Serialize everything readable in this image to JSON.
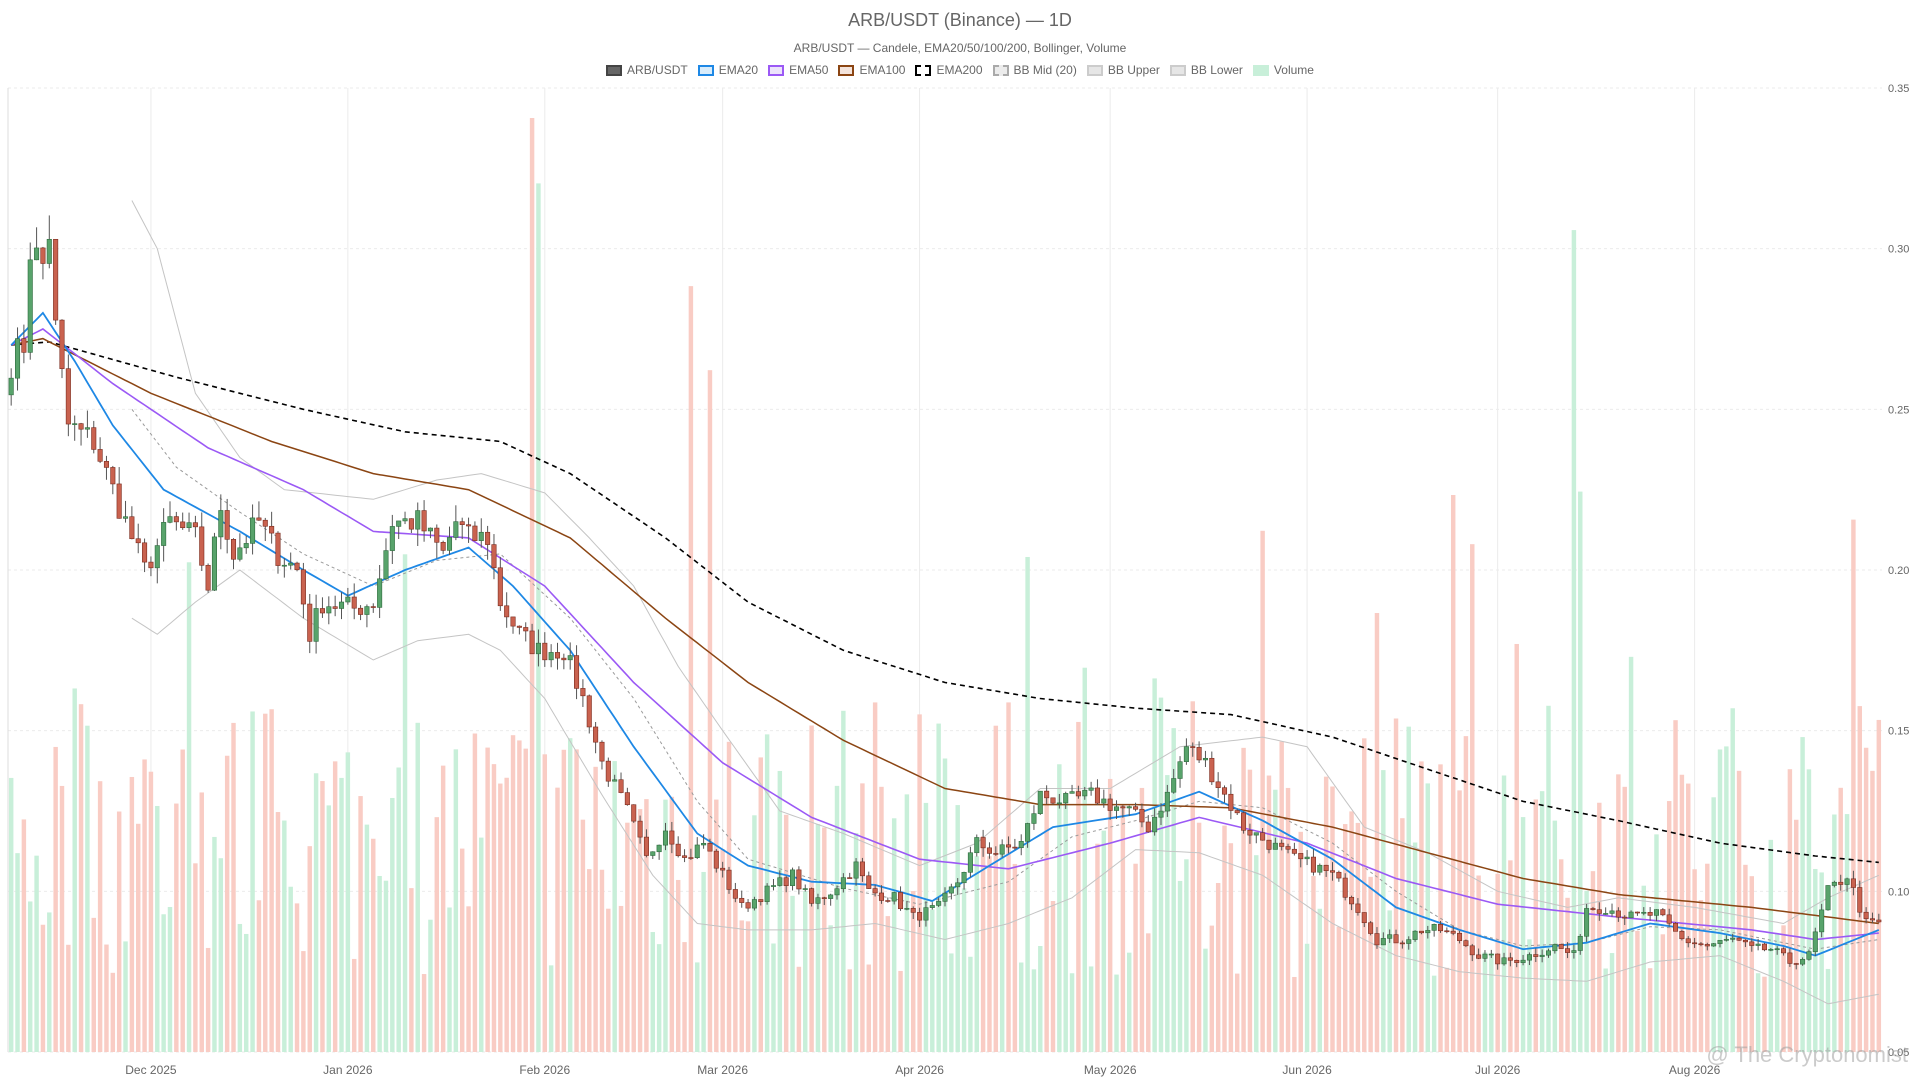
{
  "title": "ARB/USDT (Binance) — 1D",
  "subtitle": "ARB/USDT — Candele, EMA20/50/100/200, Bollinger, Volume",
  "watermark": "@ The Cryptonomist",
  "legend": [
    {
      "label": "ARB/USDT",
      "fill": "#666666",
      "stroke": "#444444",
      "dash": false
    },
    {
      "label": "EMA20",
      "fill": "#d8ecfb",
      "stroke": "#1e88e5",
      "dash": false
    },
    {
      "label": "EMA50",
      "fill": "#ece3fb",
      "stroke": "#9b59f5",
      "dash": false
    },
    {
      "label": "EMA100",
      "fill": "#f4e4dc",
      "stroke": "#8b4513",
      "dash": false
    },
    {
      "label": "EMA200",
      "fill": "#ffffff",
      "stroke": "#000000",
      "dash": true
    },
    {
      "label": "BB Mid (20)",
      "fill": "#ececec",
      "stroke": "#aaaaaa",
      "dash": true
    },
    {
      "label": "BB Upper",
      "fill": "#e6e6e6",
      "stroke": "#cccccc",
      "dash": false
    },
    {
      "label": "BB Lower",
      "fill": "#e6e6e6",
      "stroke": "#cccccc",
      "dash": false
    },
    {
      "label": "Volume",
      "fill": "#c8efd9",
      "stroke": "#c8efd9",
      "dash": false
    }
  ],
  "chart_data": {
    "type": "candlestick",
    "ylim": [
      0.05,
      0.35
    ],
    "y_ticks": [
      0.05,
      0.1,
      0.15,
      0.2,
      0.25,
      0.3,
      0.35
    ],
    "y_tick_labels": [
      "0.05",
      "0.10",
      "0.15",
      "0.20",
      "0.25",
      "0.30",
      "0.35"
    ],
    "x_start": "2025-11-09",
    "x_end": "2026-08-30",
    "x_ticks": [
      {
        "date": "2025-12-01",
        "label": "Dec 2025"
      },
      {
        "date": "2026-01-01",
        "label": "Jan 2026"
      },
      {
        "date": "2026-02-01",
        "label": "Feb 2026"
      },
      {
        "date": "2026-03-01",
        "label": "Mar 2026"
      },
      {
        "date": "2026-04-01",
        "label": "Apr 2026"
      },
      {
        "date": "2026-05-01",
        "label": "May 2026"
      },
      {
        "date": "2026-06-01",
        "label": "Jun 2026"
      },
      {
        "date": "2026-07-01",
        "label": "Jul 2026"
      },
      {
        "date": "2026-08-01",
        "label": "Aug 2026"
      }
    ],
    "close_anchors": [
      [
        "2025-11-09",
        0.265
      ],
      [
        "2025-11-11",
        0.27
      ],
      [
        "2025-11-12",
        0.3
      ],
      [
        "2025-11-14",
        0.295
      ],
      [
        "2025-11-15",
        0.305
      ],
      [
        "2025-11-16",
        0.275
      ],
      [
        "2025-11-17",
        0.26
      ],
      [
        "2025-11-18",
        0.245
      ],
      [
        "2025-11-22",
        0.24
      ],
      [
        "2025-11-25",
        0.225
      ],
      [
        "2025-11-28",
        0.21
      ],
      [
        "2025-11-30",
        0.2
      ],
      [
        "2025-12-04",
        0.215
      ],
      [
        "2025-12-08",
        0.21
      ],
      [
        "2025-12-10",
        0.195
      ],
      [
        "2025-12-12",
        0.22
      ],
      [
        "2025-12-14",
        0.205
      ],
      [
        "2025-12-18",
        0.215
      ],
      [
        "2025-12-21",
        0.205
      ],
      [
        "2025-12-24",
        0.2
      ],
      [
        "2025-12-26",
        0.18
      ],
      [
        "2025-12-28",
        0.19
      ],
      [
        "2026-01-02",
        0.188
      ],
      [
        "2026-01-05",
        0.19
      ],
      [
        "2026-01-08",
        0.215
      ],
      [
        "2026-01-12",
        0.215
      ],
      [
        "2026-01-16",
        0.205
      ],
      [
        "2026-01-18",
        0.215
      ],
      [
        "2026-01-20",
        0.21
      ],
      [
        "2026-01-23",
        0.21
      ],
      [
        "2026-01-25",
        0.19
      ],
      [
        "2026-01-28",
        0.18
      ],
      [
        "2026-01-31",
        0.175
      ],
      [
        "2026-02-04",
        0.175
      ],
      [
        "2026-02-07",
        0.16
      ],
      [
        "2026-02-10",
        0.14
      ],
      [
        "2026-02-14",
        0.125
      ],
      [
        "2026-02-17",
        0.11
      ],
      [
        "2026-02-20",
        0.12
      ],
      [
        "2026-02-23",
        0.11
      ],
      [
        "2026-02-26",
        0.115
      ],
      [
        "2026-03-01",
        0.105
      ],
      [
        "2026-03-04",
        0.095
      ],
      [
        "2026-03-08",
        0.1
      ],
      [
        "2026-03-12",
        0.105
      ],
      [
        "2026-03-15",
        0.096
      ],
      [
        "2026-03-18",
        0.1
      ],
      [
        "2026-03-22",
        0.108
      ],
      [
        "2026-03-24",
        0.1
      ],
      [
        "2026-03-28",
        0.098
      ],
      [
        "2026-03-31",
        0.092
      ],
      [
        "2026-04-04",
        0.095
      ],
      [
        "2026-04-07",
        0.103
      ],
      [
        "2026-04-10",
        0.115
      ],
      [
        "2026-04-13",
        0.112
      ],
      [
        "2026-04-17",
        0.115
      ],
      [
        "2026-04-20",
        0.13
      ],
      [
        "2026-04-24",
        0.128
      ],
      [
        "2026-04-28",
        0.13
      ],
      [
        "2026-05-01",
        0.127
      ],
      [
        "2026-05-04",
        0.125
      ],
      [
        "2026-05-07",
        0.12
      ],
      [
        "2026-05-10",
        0.13
      ],
      [
        "2026-05-13",
        0.145
      ],
      [
        "2026-05-16",
        0.14
      ],
      [
        "2026-05-19",
        0.13
      ],
      [
        "2026-05-22",
        0.12
      ],
      [
        "2026-05-26",
        0.115
      ],
      [
        "2026-05-30",
        0.11
      ],
      [
        "2026-06-02",
        0.108
      ],
      [
        "2026-06-05",
        0.105
      ],
      [
        "2026-06-09",
        0.095
      ],
      [
        "2026-06-12",
        0.085
      ],
      [
        "2026-06-16",
        0.085
      ],
      [
        "2026-06-19",
        0.088
      ],
      [
        "2026-06-22",
        0.088
      ],
      [
        "2026-06-25",
        0.085
      ],
      [
        "2026-06-28",
        0.08
      ],
      [
        "2026-07-02",
        0.078
      ],
      [
        "2026-07-06",
        0.08
      ],
      [
        "2026-07-10",
        0.083
      ],
      [
        "2026-07-13",
        0.08
      ],
      [
        "2026-07-15",
        0.095
      ],
      [
        "2026-07-18",
        0.095
      ],
      [
        "2026-07-22",
        0.092
      ],
      [
        "2026-07-26",
        0.093
      ],
      [
        "2026-07-30",
        0.085
      ],
      [
        "2026-08-03",
        0.083
      ],
      [
        "2026-08-07",
        0.085
      ],
      [
        "2026-08-10",
        0.082
      ],
      [
        "2026-08-13",
        0.082
      ],
      [
        "2026-08-16",
        0.078
      ],
      [
        "2026-08-19",
        0.08
      ],
      [
        "2026-08-22",
        0.1
      ],
      [
        "2026-08-25",
        0.105
      ],
      [
        "2026-08-28",
        0.09
      ],
      [
        "2026-08-30",
        0.09
      ]
    ],
    "ema20_anchors": [
      [
        "2025-11-09",
        0.27
      ],
      [
        "2025-11-14",
        0.28
      ],
      [
        "2025-11-19",
        0.265
      ],
      [
        "2025-11-25",
        0.245
      ],
      [
        "2025-12-03",
        0.225
      ],
      [
        "2025-12-15",
        0.212
      ],
      [
        "2025-12-25",
        0.2
      ],
      [
        "2026-01-01",
        0.192
      ],
      [
        "2026-01-10",
        0.2
      ],
      [
        "2026-01-20",
        0.207
      ],
      [
        "2026-01-27",
        0.195
      ],
      [
        "2026-02-05",
        0.175
      ],
      [
        "2026-02-15",
        0.145
      ],
      [
        "2026-02-25",
        0.118
      ],
      [
        "2026-03-05",
        0.108
      ],
      [
        "2026-03-15",
        0.103
      ],
      [
        "2026-03-25",
        0.102
      ],
      [
        "2026-04-03",
        0.097
      ],
      [
        "2026-04-12",
        0.108
      ],
      [
        "2026-04-22",
        0.12
      ],
      [
        "2026-05-05",
        0.124
      ],
      [
        "2026-05-15",
        0.131
      ],
      [
        "2026-05-25",
        0.122
      ],
      [
        "2026-06-05",
        0.11
      ],
      [
        "2026-06-15",
        0.095
      ],
      [
        "2026-06-25",
        0.088
      ],
      [
        "2026-07-05",
        0.082
      ],
      [
        "2026-07-15",
        0.084
      ],
      [
        "2026-07-25",
        0.09
      ],
      [
        "2026-08-05",
        0.087
      ],
      [
        "2026-08-15",
        0.083
      ],
      [
        "2026-08-20",
        0.08
      ],
      [
        "2026-08-30",
        0.088
      ]
    ],
    "ema50_anchors": [
      [
        "2025-11-09",
        0.27
      ],
      [
        "2025-11-14",
        0.275
      ],
      [
        "2025-11-25",
        0.258
      ],
      [
        "2025-12-10",
        0.238
      ],
      [
        "2025-12-25",
        0.225
      ],
      [
        "2026-01-05",
        0.212
      ],
      [
        "2026-01-20",
        0.21
      ],
      [
        "2026-02-01",
        0.195
      ],
      [
        "2026-02-15",
        0.165
      ],
      [
        "2026-03-01",
        0.14
      ],
      [
        "2026-03-15",
        0.123
      ],
      [
        "2026-04-01",
        0.11
      ],
      [
        "2026-04-15",
        0.107
      ],
      [
        "2026-05-01",
        0.115
      ],
      [
        "2026-05-15",
        0.123
      ],
      [
        "2026-06-01",
        0.115
      ],
      [
        "2026-06-15",
        0.104
      ],
      [
        "2026-07-01",
        0.096
      ],
      [
        "2026-07-20",
        0.092
      ],
      [
        "2026-08-10",
        0.088
      ],
      [
        "2026-08-20",
        0.085
      ],
      [
        "2026-08-30",
        0.087
      ]
    ],
    "ema100_anchors": [
      [
        "2025-11-09",
        0.27
      ],
      [
        "2025-11-14",
        0.272
      ],
      [
        "2025-12-01",
        0.255
      ],
      [
        "2025-12-20",
        0.24
      ],
      [
        "2026-01-05",
        0.23
      ],
      [
        "2026-01-20",
        0.225
      ],
      [
        "2026-02-05",
        0.21
      ],
      [
        "2026-02-20",
        0.185
      ],
      [
        "2026-03-05",
        0.165
      ],
      [
        "2026-03-20",
        0.147
      ],
      [
        "2026-04-05",
        0.132
      ],
      [
        "2026-04-20",
        0.127
      ],
      [
        "2026-05-05",
        0.127
      ],
      [
        "2026-05-20",
        0.126
      ],
      [
        "2026-06-05",
        0.12
      ],
      [
        "2026-06-20",
        0.112
      ],
      [
        "2026-07-05",
        0.104
      ],
      [
        "2026-07-20",
        0.099
      ],
      [
        "2026-08-10",
        0.095
      ],
      [
        "2026-08-30",
        0.09
      ]
    ],
    "ema200_anchors": [
      [
        "2025-11-09",
        0.27
      ],
      [
        "2025-11-15",
        0.271
      ],
      [
        "2025-12-05",
        0.26
      ],
      [
        "2025-12-25",
        0.25
      ],
      [
        "2026-01-10",
        0.243
      ],
      [
        "2026-01-25",
        0.24
      ],
      [
        "2026-02-05",
        0.23
      ],
      [
        "2026-02-20",
        0.21
      ],
      [
        "2026-03-05",
        0.19
      ],
      [
        "2026-03-20",
        0.175
      ],
      [
        "2026-04-05",
        0.165
      ],
      [
        "2026-04-20",
        0.16
      ],
      [
        "2026-05-05",
        0.157
      ],
      [
        "2026-05-20",
        0.155
      ],
      [
        "2026-06-05",
        0.148
      ],
      [
        "2026-06-20",
        0.138
      ],
      [
        "2026-07-05",
        0.128
      ],
      [
        "2026-07-20",
        0.122
      ],
      [
        "2026-08-05",
        0.115
      ],
      [
        "2026-08-20",
        0.111
      ],
      [
        "2026-08-30",
        0.109
      ]
    ],
    "bb_upper_anchors": [
      [
        "2025-11-28",
        0.315
      ],
      [
        "2025-12-02",
        0.3
      ],
      [
        "2025-12-08",
        0.255
      ],
      [
        "2025-12-15",
        0.235
      ],
      [
        "2025-12-22",
        0.225
      ],
      [
        "2026-01-05",
        0.222
      ],
      [
        "2026-01-15",
        0.228
      ],
      [
        "2026-01-22",
        0.23
      ],
      [
        "2026-02-01",
        0.224
      ],
      [
        "2026-02-08",
        0.21
      ],
      [
        "2026-02-15",
        0.195
      ],
      [
        "2026-02-22",
        0.17
      ],
      [
        "2026-03-01",
        0.15
      ],
      [
        "2026-03-10",
        0.125
      ],
      [
        "2026-03-20",
        0.118
      ],
      [
        "2026-04-01",
        0.108
      ],
      [
        "2026-04-10",
        0.115
      ],
      [
        "2026-04-20",
        0.132
      ],
      [
        "2026-05-01",
        0.132
      ],
      [
        "2026-05-12",
        0.145
      ],
      [
        "2026-05-25",
        0.148
      ],
      [
        "2026-06-01",
        0.145
      ],
      [
        "2026-06-10",
        0.12
      ],
      [
        "2026-06-20",
        0.112
      ],
      [
        "2026-07-01",
        0.1
      ],
      [
        "2026-07-12",
        0.095
      ],
      [
        "2026-07-20",
        0.098
      ],
      [
        "2026-08-01",
        0.095
      ],
      [
        "2026-08-15",
        0.09
      ],
      [
        "2026-08-22",
        0.098
      ],
      [
        "2026-08-30",
        0.105
      ]
    ],
    "bb_mid_anchors": [
      [
        "2025-11-28",
        0.25
      ],
      [
        "2025-12-05",
        0.232
      ],
      [
        "2025-12-15",
        0.218
      ],
      [
        "2025-12-25",
        0.205
      ],
      [
        "2026-01-05",
        0.195
      ],
      [
        "2026-01-15",
        0.203
      ],
      [
        "2026-01-25",
        0.205
      ],
      [
        "2026-02-05",
        0.185
      ],
      [
        "2026-02-15",
        0.16
      ],
      [
        "2026-02-25",
        0.128
      ],
      [
        "2026-03-05",
        0.11
      ],
      [
        "2026-03-20",
        0.101
      ],
      [
        "2026-04-01",
        0.096
      ],
      [
        "2026-04-15",
        0.103
      ],
      [
        "2026-04-25",
        0.117
      ],
      [
        "2026-05-05",
        0.122
      ],
      [
        "2026-05-15",
        0.128
      ],
      [
        "2026-05-25",
        0.126
      ],
      [
        "2026-06-05",
        0.115
      ],
      [
        "2026-06-15",
        0.1
      ],
      [
        "2026-06-25",
        0.088
      ],
      [
        "2026-07-05",
        0.083
      ],
      [
        "2026-07-15",
        0.084
      ],
      [
        "2026-07-25",
        0.089
      ],
      [
        "2026-08-05",
        0.088
      ],
      [
        "2026-08-20",
        0.082
      ],
      [
        "2026-08-30",
        0.085
      ]
    ],
    "bb_lower_anchors": [
      [
        "2025-11-28",
        0.185
      ],
      [
        "2025-12-02",
        0.18
      ],
      [
        "2025-12-08",
        0.19
      ],
      [
        "2025-12-15",
        0.2
      ],
      [
        "2025-12-25",
        0.185
      ],
      [
        "2026-01-05",
        0.172
      ],
      [
        "2026-01-12",
        0.178
      ],
      [
        "2026-01-20",
        0.18
      ],
      [
        "2026-01-25",
        0.175
      ],
      [
        "2026-02-01",
        0.16
      ],
      [
        "2026-02-10",
        0.13
      ],
      [
        "2026-02-18",
        0.105
      ],
      [
        "2026-02-25",
        0.09
      ],
      [
        "2026-03-05",
        0.088
      ],
      [
        "2026-03-15",
        0.088
      ],
      [
        "2026-03-25",
        0.09
      ],
      [
        "2026-04-05",
        0.085
      ],
      [
        "2026-04-15",
        0.09
      ],
      [
        "2026-04-25",
        0.098
      ],
      [
        "2026-05-05",
        0.113
      ],
      [
        "2026-05-15",
        0.112
      ],
      [
        "2026-05-25",
        0.105
      ],
      [
        "2026-06-05",
        0.09
      ],
      [
        "2026-06-15",
        0.08
      ],
      [
        "2026-06-25",
        0.075
      ],
      [
        "2026-07-05",
        0.073
      ],
      [
        "2026-07-15",
        0.072
      ],
      [
        "2026-07-25",
        0.078
      ],
      [
        "2026-08-05",
        0.08
      ],
      [
        "2026-08-15",
        0.072
      ],
      [
        "2026-08-22",
        0.065
      ],
      [
        "2026-08-30",
        0.068
      ]
    ],
    "volume_scale_max": 1.0,
    "volume_peaks": [
      [
        "2026-01-30",
        1.0
      ],
      [
        "2026-01-31",
        0.93
      ],
      [
        "2026-02-24",
        0.82
      ],
      [
        "2026-02-27",
        0.73
      ],
      [
        "2026-04-18",
        0.53
      ],
      [
        "2026-05-08",
        0.4
      ],
      [
        "2026-06-12",
        0.47
      ],
      [
        "2026-07-13",
        0.88
      ],
      [
        "2026-07-14",
        0.6
      ],
      [
        "2026-08-26",
        0.57
      ]
    ],
    "colors": {
      "up_body": "#58a36b",
      "up_border": "#2e6b3e",
      "down_body": "#c9624f",
      "down_border": "#7a2b1e",
      "vol_up": "#c8efd9",
      "vol_down": "#f9ccc4",
      "ema20": "#1e88e5",
      "ema50": "#9b59f5",
      "ema100": "#8b4513",
      "ema200": "#000000",
      "bb": "#c4c4c4",
      "bb_mid": "#9a9a9a",
      "grid": "#ebebeb"
    }
  }
}
